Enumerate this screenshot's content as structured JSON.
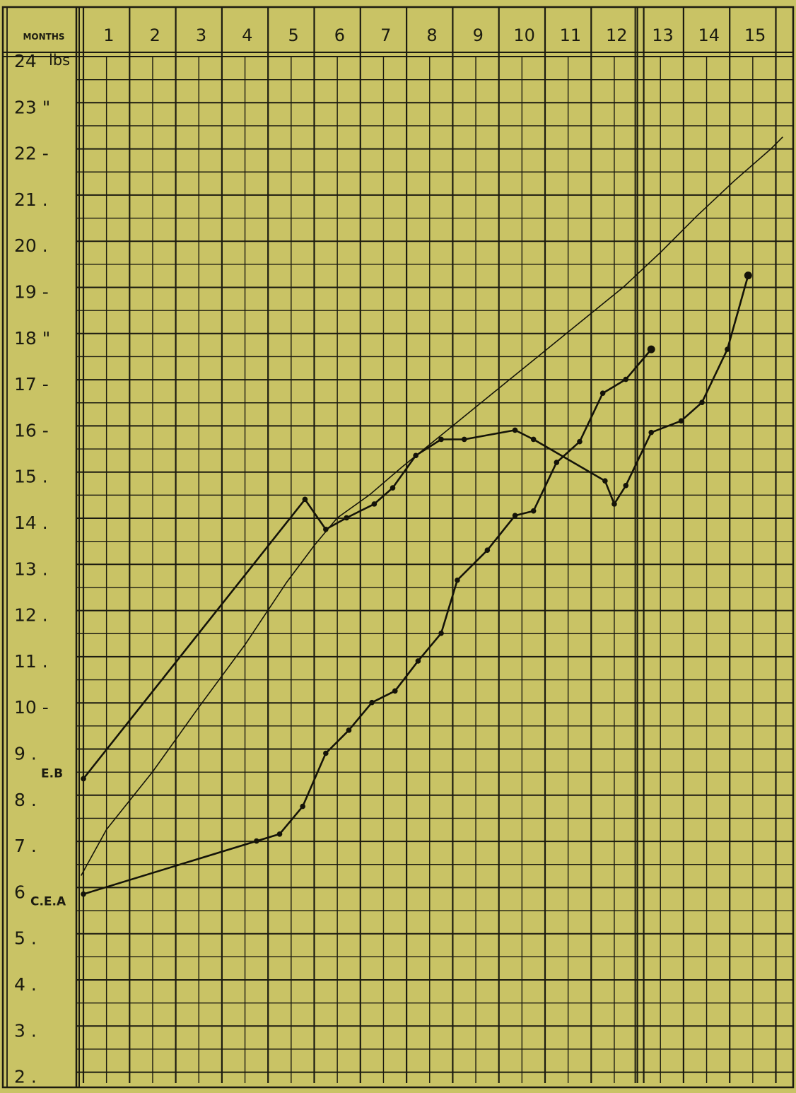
{
  "chart_data": {
    "type": "line",
    "header_label": "MONTHS",
    "unit_label": "lbs",
    "months": [
      "1",
      "2",
      "3",
      "4",
      "5",
      "6",
      "7",
      "8",
      "9",
      "10",
      "11",
      "12",
      "13",
      "14",
      "15"
    ],
    "weight_ticks": [
      {
        "value": 24,
        "label": "24"
      },
      {
        "value": 23,
        "label": "23 \""
      },
      {
        "value": 22,
        "label": "22 -"
      },
      {
        "value": 21,
        "label": "21 ."
      },
      {
        "value": 20,
        "label": "20 ."
      },
      {
        "value": 19,
        "label": "19 -"
      },
      {
        "value": 18,
        "label": "18 \""
      },
      {
        "value": 17,
        "label": "17 -"
      },
      {
        "value": 16,
        "label": "16 -"
      },
      {
        "value": 15,
        "label": "15 ."
      },
      {
        "value": 14,
        "label": "14 ."
      },
      {
        "value": 13,
        "label": "13 ."
      },
      {
        "value": 12,
        "label": "12 ."
      },
      {
        "value": 11,
        "label": "11 ."
      },
      {
        "value": 10,
        "label": "10 -"
      },
      {
        "value": 9,
        "label": "9 ."
      },
      {
        "value": 8,
        "label": "8 ."
      },
      {
        "value": 7,
        "label": "7 ."
      },
      {
        "value": 6,
        "label": "6"
      },
      {
        "value": 5,
        "label": "5 ."
      },
      {
        "value": 4,
        "label": "4 ."
      },
      {
        "value": 3,
        "label": "3 ."
      },
      {
        "value": 2,
        "label": "2 ."
      }
    ],
    "x_range": [
      0,
      15.2
    ],
    "y_range": [
      1.8,
      24.25
    ],
    "grid": true,
    "colors": {
      "background": "#c9c365",
      "ink": "#1c1b10"
    },
    "series": [
      {
        "name": "E.B",
        "style": "markers",
        "points": [
          [
            0,
            8.45
          ],
          [
            4.8,
            14.5
          ],
          [
            5.25,
            13.85
          ],
          [
            5.7,
            14.1
          ],
          [
            6.3,
            14.4
          ],
          [
            6.7,
            14.75
          ],
          [
            7.2,
            15.45
          ],
          [
            7.75,
            15.8
          ],
          [
            8.25,
            15.8
          ],
          [
            9.35,
            16.0
          ],
          [
            9.75,
            15.8
          ],
          [
            11.3,
            14.9
          ],
          [
            11.5,
            14.4
          ],
          [
            11.75,
            14.8
          ],
          [
            12.3,
            15.95
          ],
          [
            12.95,
            16.2
          ],
          [
            13.4,
            16.6
          ],
          [
            13.95,
            17.75
          ],
          [
            14.4,
            19.35
          ]
        ]
      },
      {
        "name": "C.E.A",
        "style": "markers",
        "points": [
          [
            0,
            5.95
          ],
          [
            3.75,
            7.1
          ],
          [
            4.25,
            7.25
          ],
          [
            4.75,
            7.85
          ],
          [
            5.25,
            9.0
          ],
          [
            5.75,
            9.5
          ],
          [
            6.25,
            10.1
          ],
          [
            6.75,
            10.35
          ],
          [
            7.25,
            11.0
          ],
          [
            7.75,
            11.6
          ],
          [
            8.1,
            12.75
          ],
          [
            8.75,
            13.4
          ],
          [
            9.35,
            14.15
          ],
          [
            9.75,
            14.25
          ],
          [
            10.25,
            15.3
          ],
          [
            10.75,
            15.75
          ],
          [
            11.25,
            16.8
          ],
          [
            11.75,
            17.1
          ],
          [
            12.3,
            17.75
          ]
        ]
      },
      {
        "name": "",
        "style": "plain",
        "points": [
          [
            -0.05,
            6.35
          ],
          [
            0.5,
            7.35
          ],
          [
            1.5,
            8.6
          ],
          [
            2.5,
            10.0
          ],
          [
            3.5,
            11.35
          ],
          [
            4.4,
            12.7
          ],
          [
            5.0,
            13.5
          ],
          [
            5.5,
            14.1
          ],
          [
            6.2,
            14.6
          ],
          [
            6.9,
            15.2
          ],
          [
            7.7,
            15.85
          ],
          [
            8.5,
            16.5
          ],
          [
            9.3,
            17.15
          ],
          [
            10.1,
            17.8
          ],
          [
            10.9,
            18.45
          ],
          [
            11.7,
            19.1
          ],
          [
            12.5,
            19.85
          ],
          [
            13.3,
            20.65
          ],
          [
            14.1,
            21.4
          ],
          [
            14.9,
            22.1
          ],
          [
            15.15,
            22.35
          ]
        ]
      }
    ]
  }
}
